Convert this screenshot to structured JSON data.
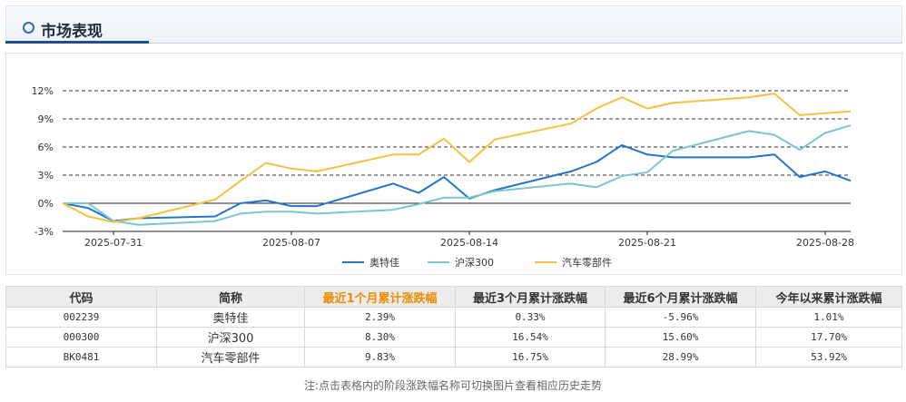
{
  "section": {
    "title": "市场表现"
  },
  "chart_data": {
    "type": "line",
    "x_tick_labels": [
      "2025-07-31",
      "2025-08-07",
      "2025-08-14",
      "2025-08-21",
      "2025-08-28"
    ],
    "y_tick_labels": [
      "12%",
      "9%",
      "6%",
      "3%",
      "0%",
      "-3%"
    ],
    "y_ticks": [
      12,
      9,
      6,
      3,
      0,
      -3
    ],
    "ylim": [
      -3,
      12
    ],
    "grid": "horizontal dashed",
    "legend_position": "bottom",
    "series": [
      {
        "name": "奥特佳",
        "color": "#2475c9",
        "x": [
          "2025-07-29",
          "2025-07-30",
          "2025-07-31",
          "2025-08-01",
          "2025-08-04",
          "2025-08-05",
          "2025-08-06",
          "2025-08-07",
          "2025-08-08",
          "2025-08-11",
          "2025-08-12",
          "2025-08-13",
          "2025-08-14",
          "2025-08-15",
          "2025-08-18",
          "2025-08-19",
          "2025-08-20",
          "2025-08-21",
          "2025-08-22",
          "2025-08-25",
          "2025-08-26",
          "2025-08-27",
          "2025-08-28",
          "2025-08-29"
        ],
        "y": [
          0,
          -0.5,
          -1.9,
          -1.6,
          -1.4,
          0.0,
          0.3,
          -0.3,
          -0.3,
          2.1,
          1.1,
          2.8,
          0.5,
          1.4,
          3.4,
          4.4,
          6.2,
          5.2,
          4.9,
          4.9,
          5.2,
          2.8,
          3.4,
          2.4
        ]
      },
      {
        "name": "沪深300",
        "color": "#7cc4cf",
        "x": [
          "2025-07-29",
          "2025-07-30",
          "2025-07-31",
          "2025-08-01",
          "2025-08-04",
          "2025-08-05",
          "2025-08-06",
          "2025-08-07",
          "2025-08-08",
          "2025-08-11",
          "2025-08-12",
          "2025-08-13",
          "2025-08-14",
          "2025-08-15",
          "2025-08-18",
          "2025-08-19",
          "2025-08-20",
          "2025-08-21",
          "2025-08-22",
          "2025-08-25",
          "2025-08-26",
          "2025-08-27",
          "2025-08-28",
          "2025-08-29"
        ],
        "y": [
          0,
          0,
          -1.9,
          -2.3,
          -1.9,
          -1.1,
          -0.9,
          -0.9,
          -1.1,
          -0.7,
          -0.1,
          0.6,
          0.6,
          1.3,
          2.1,
          1.7,
          2.9,
          3.3,
          5.6,
          7.7,
          7.3,
          5.7,
          7.5,
          8.3
        ]
      },
      {
        "name": "汽车零部件",
        "color": "#f5c040",
        "x": [
          "2025-07-29",
          "2025-07-30",
          "2025-07-31",
          "2025-08-01",
          "2025-08-04",
          "2025-08-05",
          "2025-08-06",
          "2025-08-07",
          "2025-08-08",
          "2025-08-11",
          "2025-08-12",
          "2025-08-13",
          "2025-08-14",
          "2025-08-15",
          "2025-08-18",
          "2025-08-19",
          "2025-08-20",
          "2025-08-21",
          "2025-08-22",
          "2025-08-25",
          "2025-08-26",
          "2025-08-27",
          "2025-08-28",
          "2025-08-29"
        ],
        "y": [
          0,
          -1.4,
          -2.0,
          -1.6,
          0.4,
          2.4,
          4.3,
          3.7,
          3.4,
          5.2,
          5.2,
          6.9,
          4.4,
          6.8,
          8.5,
          10.1,
          11.3,
          10.1,
          10.7,
          11.3,
          11.7,
          9.4,
          9.6,
          9.8
        ]
      }
    ]
  },
  "table": {
    "headers": [
      "代码",
      "简称",
      "最近1个月累计涨跌幅",
      "最近3个月累计涨跌幅",
      "最近6个月累计涨跌幅",
      "今年以来累计涨跌幅"
    ],
    "rows": [
      [
        "002239",
        "奥特佳",
        "2.39%",
        "0.33%",
        "-5.96%",
        "1.01%"
      ],
      [
        "000300",
        "沪深300",
        "8.30%",
        "16.54%",
        "15.60%",
        "17.70%"
      ],
      [
        "BK0481",
        "汽车零部件",
        "9.83%",
        "16.75%",
        "28.99%",
        "53.92%"
      ]
    ],
    "active_column": 2
  },
  "note": "注:点击表格内的阶段涨跌幅名称可切换图片查看相应历史走势"
}
